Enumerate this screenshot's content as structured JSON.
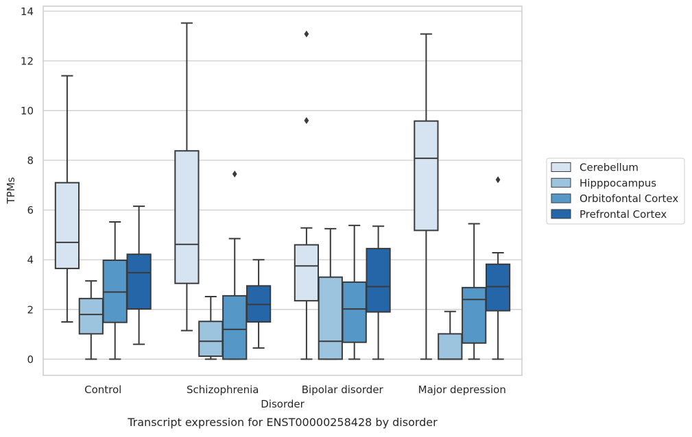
{
  "chart_data": {
    "type": "boxplot",
    "caption": "Transcript expression for ENST00000258428 by disorder",
    "xlabel": "Disorder",
    "ylabel": "TPMs",
    "ylim": [
      -0.65,
      14.2
    ],
    "yticks": [
      0,
      2,
      4,
      6,
      8,
      10,
      12,
      14
    ],
    "grid": "horizontal",
    "legend_placement": "right",
    "categories": [
      "Control",
      "Schizophrenia",
      "Bipolar disorder",
      "Major depression"
    ],
    "series": [
      {
        "name": "Cerebellum",
        "color": "#d6e4f2",
        "boxes": [
          {
            "whisker_low": 1.5,
            "q1": 3.65,
            "median": 4.7,
            "q3": 7.1,
            "whisker_high": 11.4,
            "outliers": []
          },
          {
            "whisker_low": 1.15,
            "q1": 3.05,
            "median": 4.62,
            "q3": 8.38,
            "whisker_high": 13.52,
            "outliers": []
          },
          {
            "whisker_low": 0.0,
            "q1": 2.35,
            "median": 3.75,
            "q3": 4.6,
            "whisker_high": 5.28,
            "outliers": [
              9.6,
              13.08
            ]
          },
          {
            "whisker_low": 0.0,
            "q1": 5.18,
            "median": 8.08,
            "q3": 9.58,
            "whisker_high": 13.08,
            "outliers": []
          }
        ]
      },
      {
        "name": "Hipppocampus",
        "color": "#9cc4df",
        "boxes": [
          {
            "whisker_low": 0.0,
            "q1": 1.02,
            "median": 1.8,
            "q3": 2.44,
            "whisker_high": 3.15,
            "outliers": []
          },
          {
            "whisker_low": 0.0,
            "q1": 0.12,
            "median": 0.72,
            "q3": 1.52,
            "whisker_high": 2.52,
            "outliers": []
          },
          {
            "whisker_low": 0.0,
            "q1": 0.0,
            "median": 0.72,
            "q3": 3.3,
            "whisker_high": 5.25,
            "outliers": []
          },
          {
            "whisker_low": 0.0,
            "q1": 0.0,
            "median": 0.0,
            "q3": 1.02,
            "whisker_high": 1.92,
            "outliers": []
          }
        ]
      },
      {
        "name": "Orbitofontal Cortex",
        "color": "#5598c8",
        "boxes": [
          {
            "whisker_low": 0.0,
            "q1": 1.48,
            "median": 2.7,
            "q3": 3.98,
            "whisker_high": 5.52,
            "outliers": []
          },
          {
            "whisker_low": 0.0,
            "q1": 0.0,
            "median": 1.2,
            "q3": 2.55,
            "whisker_high": 4.85,
            "outliers": [
              7.45
            ]
          },
          {
            "whisker_low": 0.0,
            "q1": 0.68,
            "median": 2.02,
            "q3": 3.1,
            "whisker_high": 5.38,
            "outliers": []
          },
          {
            "whisker_low": 0.0,
            "q1": 0.65,
            "median": 2.4,
            "q3": 2.88,
            "whisker_high": 5.45,
            "outliers": []
          }
        ]
      },
      {
        "name": "Prefrontal Cortex",
        "color": "#2466a8",
        "boxes": [
          {
            "whisker_low": 0.6,
            "q1": 2.02,
            "median": 3.48,
            "q3": 4.22,
            "whisker_high": 6.15,
            "outliers": []
          },
          {
            "whisker_low": 0.45,
            "q1": 1.5,
            "median": 2.2,
            "q3": 2.95,
            "whisker_high": 4.0,
            "outliers": []
          },
          {
            "whisker_low": 0.0,
            "q1": 1.9,
            "median": 2.92,
            "q3": 4.45,
            "whisker_high": 5.35,
            "outliers": []
          },
          {
            "whisker_low": 0.0,
            "q1": 1.95,
            "median": 2.92,
            "q3": 3.82,
            "whisker_high": 4.28,
            "outliers": [
              7.22
            ]
          }
        ]
      }
    ]
  }
}
